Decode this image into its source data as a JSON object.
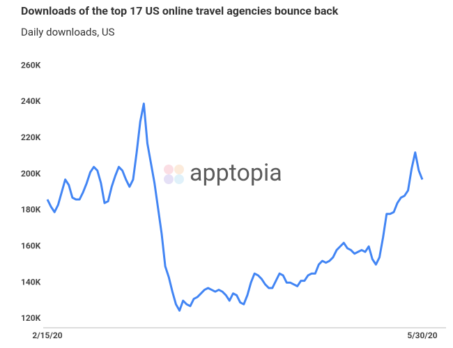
{
  "chart_data": {
    "type": "line",
    "title": "Downloads of the top 17 US online travel agencies bounce back",
    "subtitle": "Daily downloads, US",
    "watermark": "apptopia",
    "categories": [
      "2/15/20",
      null,
      null,
      null,
      null,
      null,
      null,
      null,
      null,
      null,
      null,
      null,
      null,
      null,
      null,
      null,
      null,
      null,
      null,
      null,
      null,
      null,
      null,
      null,
      null,
      null,
      null,
      null,
      null,
      null,
      null,
      null,
      null,
      null,
      null,
      null,
      null,
      null,
      null,
      null,
      null,
      null,
      null,
      null,
      null,
      null,
      null,
      null,
      null,
      null,
      null,
      null,
      null,
      null,
      null,
      null,
      null,
      null,
      null,
      null,
      null,
      null,
      null,
      null,
      null,
      null,
      null,
      null,
      null,
      null,
      null,
      null,
      null,
      null,
      null,
      null,
      null,
      null,
      null,
      null,
      null,
      null,
      null,
      null,
      null,
      null,
      null,
      null,
      null,
      null,
      null,
      null,
      null,
      null,
      null,
      null,
      null,
      null,
      null,
      null,
      null,
      null,
      null,
      null,
      null,
      "5/30/20"
    ],
    "series": [
      {
        "name": "Daily downloads",
        "color": "#4285f4",
        "values": [
          186000,
          182000,
          179000,
          183000,
          190000,
          197000,
          194000,
          187000,
          186000,
          186000,
          190000,
          195000,
          201000,
          204000,
          202000,
          195000,
          184000,
          185000,
          193000,
          199000,
          204000,
          202000,
          197000,
          193000,
          197000,
          212000,
          229000,
          239000,
          217000,
          206000,
          195000,
          181000,
          167000,
          149000,
          143000,
          135000,
          128000,
          124500,
          130000,
          128000,
          127000,
          131000,
          132000,
          134000,
          136000,
          137000,
          136000,
          135000,
          136000,
          135000,
          133000,
          130000,
          134000,
          133000,
          129000,
          128000,
          133000,
          140000,
          145000,
          144000,
          142000,
          139000,
          137000,
          137000,
          141000,
          145000,
          144000,
          140000,
          140000,
          139000,
          138000,
          141000,
          141000,
          144000,
          145000,
          145000,
          150000,
          152000,
          151000,
          152000,
          154000,
          158000,
          160000,
          162000,
          159000,
          158000,
          156000,
          157000,
          158000,
          157000,
          160000,
          153000,
          150000,
          154000,
          165000,
          178000,
          178000,
          179000,
          184000,
          187000,
          188000,
          191000,
          203000,
          212000,
          202000,
          197000
        ]
      }
    ],
    "ylim": [
      115000,
      262000
    ],
    "yticks": [
      {
        "value": 120000,
        "label": "120K"
      },
      {
        "value": 140000,
        "label": "140K"
      },
      {
        "value": 160000,
        "label": "160K"
      },
      {
        "value": 180000,
        "label": "180K"
      },
      {
        "value": 200000,
        "label": "200K"
      },
      {
        "value": 220000,
        "label": "220K"
      },
      {
        "value": 240000,
        "label": "240K"
      },
      {
        "value": 260000,
        "label": "260K"
      }
    ],
    "grid": false
  }
}
